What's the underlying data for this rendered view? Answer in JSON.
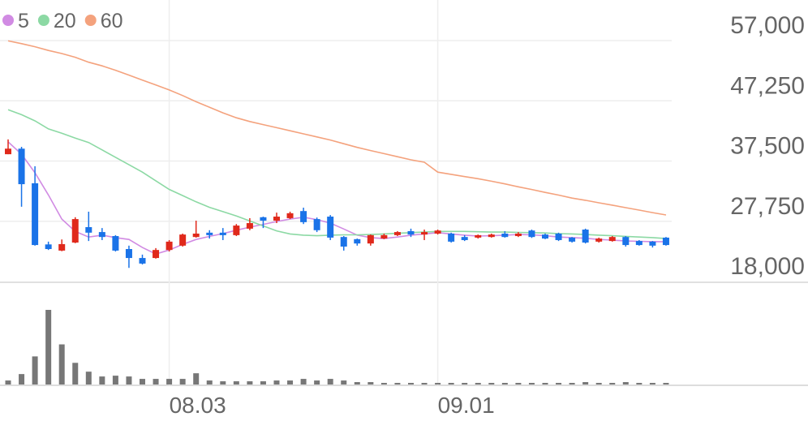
{
  "chart_data": {
    "type": "candlestick",
    "categories": [
      null,
      null,
      null,
      null,
      null,
      null,
      null,
      null,
      null,
      null,
      null,
      null,
      "08.03",
      null,
      null,
      null,
      null,
      null,
      null,
      null,
      null,
      null,
      null,
      null,
      null,
      null,
      null,
      null,
      null,
      null,
      null,
      null,
      "09.01",
      null,
      null,
      null,
      null,
      null,
      null,
      null,
      null,
      null,
      null,
      null,
      null,
      null,
      null,
      null,
      null,
      null
    ],
    "open": [
      38600,
      39500,
      33900,
      24000,
      23000,
      24300,
      26800,
      26000,
      25350,
      23250,
      21800,
      21800,
      23100,
      23800,
      25200,
      25900,
      25900,
      25500,
      26550,
      28400,
      27850,
      28250,
      29400,
      28100,
      28500,
      25200,
      24850,
      24150,
      24950,
      25500,
      26150,
      25600,
      25750,
      25750,
      25200,
      25100,
      25200,
      25750,
      25350,
      26250,
      25600,
      25750,
      25100,
      26400,
      24450,
      24550,
      25200,
      24550,
      24450,
      25100
    ],
    "close": [
      39500,
      33750,
      23900,
      23250,
      24050,
      28100,
      25900,
      25200,
      23000,
      21800,
      20900,
      23100,
      24450,
      25600,
      25750,
      25500,
      25500,
      27050,
      27450,
      27850,
      28500,
      29050,
      27600,
      26300,
      25100,
      23650,
      24150,
      25500,
      25500,
      26000,
      25600,
      26000,
      26250,
      24450,
      24700,
      25500,
      25600,
      25200,
      25750,
      25200,
      24950,
      24700,
      24450,
      24300,
      24950,
      25200,
      23900,
      23900,
      23800,
      23900
    ],
    "high": [
      41000,
      39800,
      36650,
      24450,
      24800,
      28400,
      29300,
      26650,
      25500,
      23800,
      22350,
      23400,
      24700,
      25750,
      27850,
      26300,
      26650,
      27300,
      28250,
      28500,
      29150,
      29300,
      29950,
      28350,
      28750,
      25350,
      24950,
      25600,
      25750,
      26150,
      26550,
      26400,
      26400,
      25900,
      25500,
      25600,
      25750,
      26150,
      26000,
      26400,
      25750,
      25900,
      25200,
      26550,
      25100,
      25350,
      25350,
      24700,
      24550,
      25200
    ],
    "low": [
      38600,
      30100,
      23800,
      23100,
      22900,
      24200,
      24550,
      24700,
      22850,
      20200,
      20750,
      21700,
      22850,
      23650,
      25100,
      24950,
      24700,
      25350,
      26300,
      26650,
      27450,
      28100,
      27300,
      26000,
      24700,
      23000,
      23800,
      23800,
      24850,
      25350,
      25200,
      24700,
      25600,
      24300,
      24550,
      24950,
      25100,
      25100,
      25200,
      25050,
      24850,
      24550,
      24300,
      24150,
      24300,
      24450,
      23650,
      23800,
      23500,
      23800
    ],
    "up_color": "#e0291b",
    "down_color": "#1a73e8",
    "series": [
      {
        "name": "5",
        "color": "#d18be3",
        "values": [
          40600,
          38600,
          35600,
          32000,
          28100,
          26100,
          25200,
          25500,
          25100,
          24800,
          23500,
          22450,
          23100,
          24000,
          24800,
          25300,
          25750,
          26300,
          26800,
          27250,
          27700,
          28100,
          28400,
          28000,
          27450,
          26500,
          25500,
          25100,
          24950,
          25200,
          25500,
          25700,
          25900,
          25700,
          25500,
          25350,
          25400,
          25500,
          25600,
          25550,
          25400,
          25200,
          25100,
          25000,
          24800,
          24700,
          24550,
          24500,
          24450,
          24450
        ]
      },
      {
        "name": "20",
        "color": "#8cd9a4",
        "values": [
          45800,
          45000,
          44000,
          42700,
          42000,
          41200,
          40500,
          39300,
          38100,
          36900,
          35700,
          34300,
          32900,
          31900,
          30900,
          30000,
          29300,
          28600,
          27800,
          27000,
          26200,
          25700,
          25500,
          25400,
          25500,
          25550,
          25550,
          25600,
          25700,
          25800,
          25900,
          26000,
          26100,
          26100,
          26100,
          26050,
          26000,
          26000,
          25950,
          25900,
          25850,
          25750,
          25700,
          25600,
          25500,
          25400,
          25300,
          25200,
          25100,
          24950
        ]
      },
      {
        "name": "60",
        "color": "#f4a27d",
        "values": [
          56950,
          56500,
          56000,
          55400,
          54900,
          54300,
          53500,
          52900,
          52200,
          51400,
          50600,
          49800,
          49000,
          48100,
          47100,
          46200,
          45300,
          44500,
          43900,
          43400,
          42900,
          42400,
          41900,
          41400,
          40900,
          40300,
          39700,
          39200,
          38700,
          38200,
          37700,
          37300,
          35700,
          35350,
          34980,
          34640,
          34230,
          33800,
          33330,
          32890,
          32420,
          31980,
          31500,
          31150,
          30740,
          30350,
          29950,
          29560,
          29150,
          28770
        ]
      }
    ],
    "volume": [
      5,
      13,
      35,
      93,
      50,
      27,
      16,
      10,
      11,
      10,
      7,
      7,
      7,
      7,
      14,
      5,
      4,
      4,
      4,
      4,
      5,
      5,
      7,
      5,
      7,
      5,
      3,
      3,
      2,
      2,
      2,
      2,
      2,
      2,
      2,
      2,
      2,
      2,
      2,
      2,
      2,
      2,
      2,
      3,
      2,
      2,
      3,
      2,
      2,
      2
    ],
    "volume_color": "#777777",
    "ylim": [
      18000,
      57000
    ],
    "yticks": [
      {
        "value": 18000,
        "label": "18,000"
      },
      {
        "value": 27750,
        "label": "27,750"
      },
      {
        "value": 37500,
        "label": "37,500"
      },
      {
        "value": 47250,
        "label": "47,250"
      },
      {
        "value": 57000,
        "label": "57,000"
      }
    ],
    "grid": true
  }
}
